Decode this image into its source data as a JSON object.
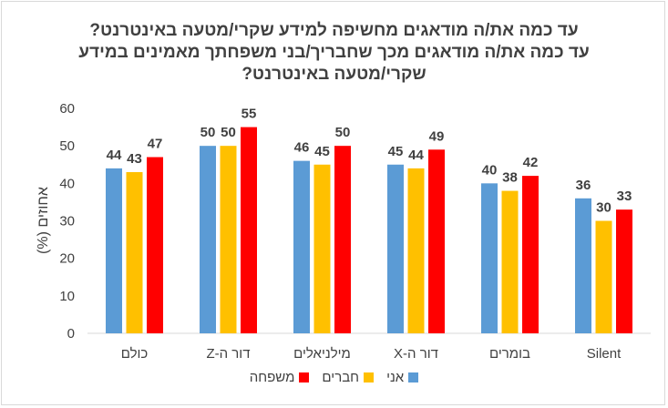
{
  "chart_data": {
    "type": "bar",
    "title_lines": [
      "עד כמה את/ה מודאגים מחשיפה למידע שקרי/מטעה באינטרנט?",
      "עד כמה את/ה מודאגים מכך שחבריך/בני משפחתך מאמינים במידע",
      "שקרי/מטעה באינטרנט?"
    ],
    "ylabel": "אחוזים (%)",
    "xlabel": "",
    "ylim": [
      0,
      60
    ],
    "yticks": [
      0,
      10,
      20,
      30,
      40,
      50,
      60
    ],
    "grid": false,
    "legend_position": "bottom",
    "categories": [
      "כולם",
      "דור ה-Z",
      "מילניאלים",
      "דור ה-X",
      "בומרים",
      "Silent"
    ],
    "series": [
      {
        "name": "אני",
        "color": "#5B9BD5",
        "values": [
          44,
          50,
          46,
          45,
          40,
          36
        ]
      },
      {
        "name": "חברים",
        "color": "#FFC000",
        "values": [
          43,
          50,
          45,
          44,
          38,
          30
        ]
      },
      {
        "name": "משפחה",
        "color": "#FF0000",
        "values": [
          47,
          55,
          50,
          49,
          42,
          33
        ]
      }
    ]
  }
}
